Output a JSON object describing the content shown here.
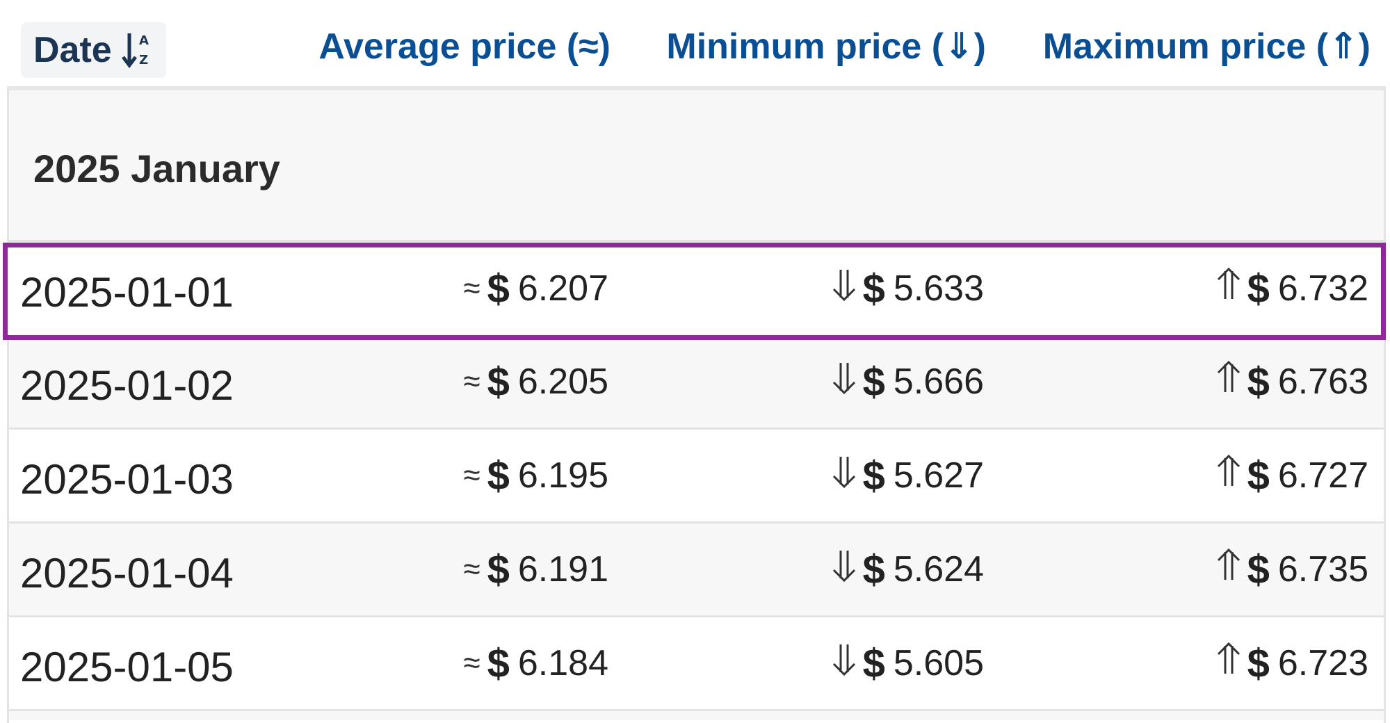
{
  "columns": {
    "date": "Date",
    "average": "Average price (≈)",
    "minimum": "Minimum price (⇓)",
    "maximum": "Maximum price (⇑)"
  },
  "group": {
    "label": "2025 January"
  },
  "symbols": {
    "approx": "≈",
    "currency": "$"
  },
  "rows": [
    {
      "date": "2025-01-01",
      "avg": "6.207",
      "min": "5.633",
      "max": "6.732",
      "highlighted": true
    },
    {
      "date": "2025-01-02",
      "avg": "6.205",
      "min": "5.666",
      "max": "6.763"
    },
    {
      "date": "2025-01-03",
      "avg": "6.195",
      "min": "5.627",
      "max": "6.727"
    },
    {
      "date": "2025-01-04",
      "avg": "6.191",
      "min": "5.624",
      "max": "6.735"
    },
    {
      "date": "2025-01-05",
      "avg": "6.184",
      "min": "5.605",
      "max": "6.723"
    }
  ],
  "colors": {
    "header_text": "#0a4f93",
    "highlight_border": "#8c2a96"
  }
}
